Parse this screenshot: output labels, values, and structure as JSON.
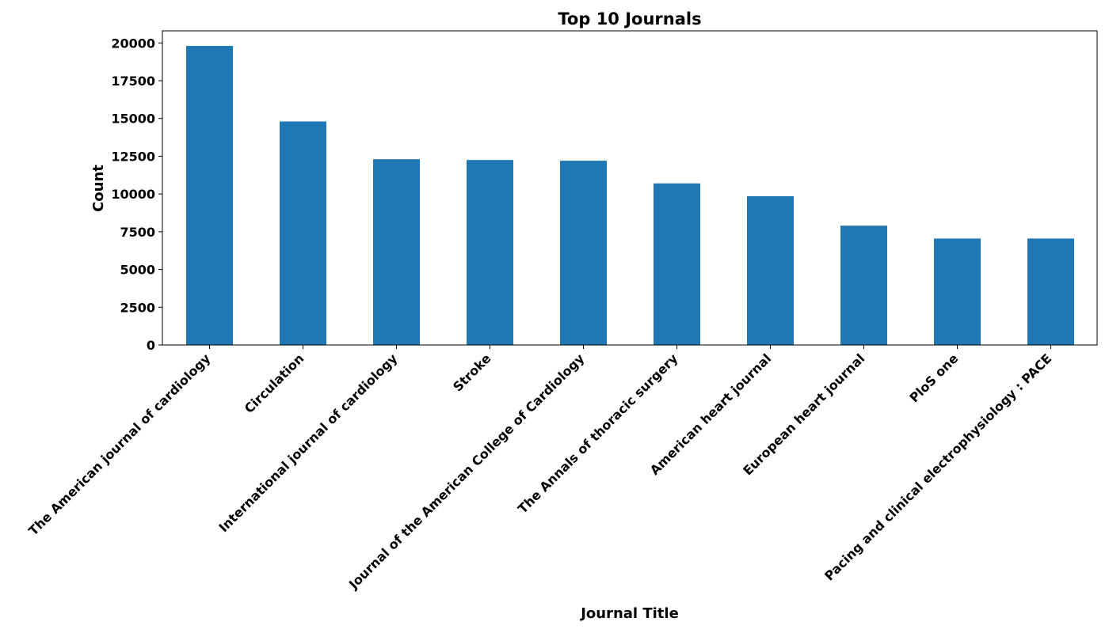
{
  "chart_data": {
    "type": "bar",
    "title": "Top 10 Journals",
    "xlabel": "Journal Title",
    "ylabel": "Count",
    "categories": [
      "The American journal of cardiology",
      "Circulation",
      "International journal of cardiology",
      "Stroke",
      "Journal of the American College of Cardiology",
      "The Annals of thoracic surgery",
      "American heart journal",
      "European heart journal",
      "PloS one",
      "Pacing and clinical electrophysiology : PACE"
    ],
    "values": [
      19800,
      14800,
      12300,
      12250,
      12200,
      10700,
      9850,
      7900,
      7050,
      7050
    ],
    "ylim": [
      0,
      20800
    ],
    "yticks": [
      0,
      2500,
      5000,
      7500,
      10000,
      12500,
      15000,
      17500,
      20000
    ],
    "grid": false,
    "legend": "none",
    "bar_color": "#1f77b4"
  }
}
